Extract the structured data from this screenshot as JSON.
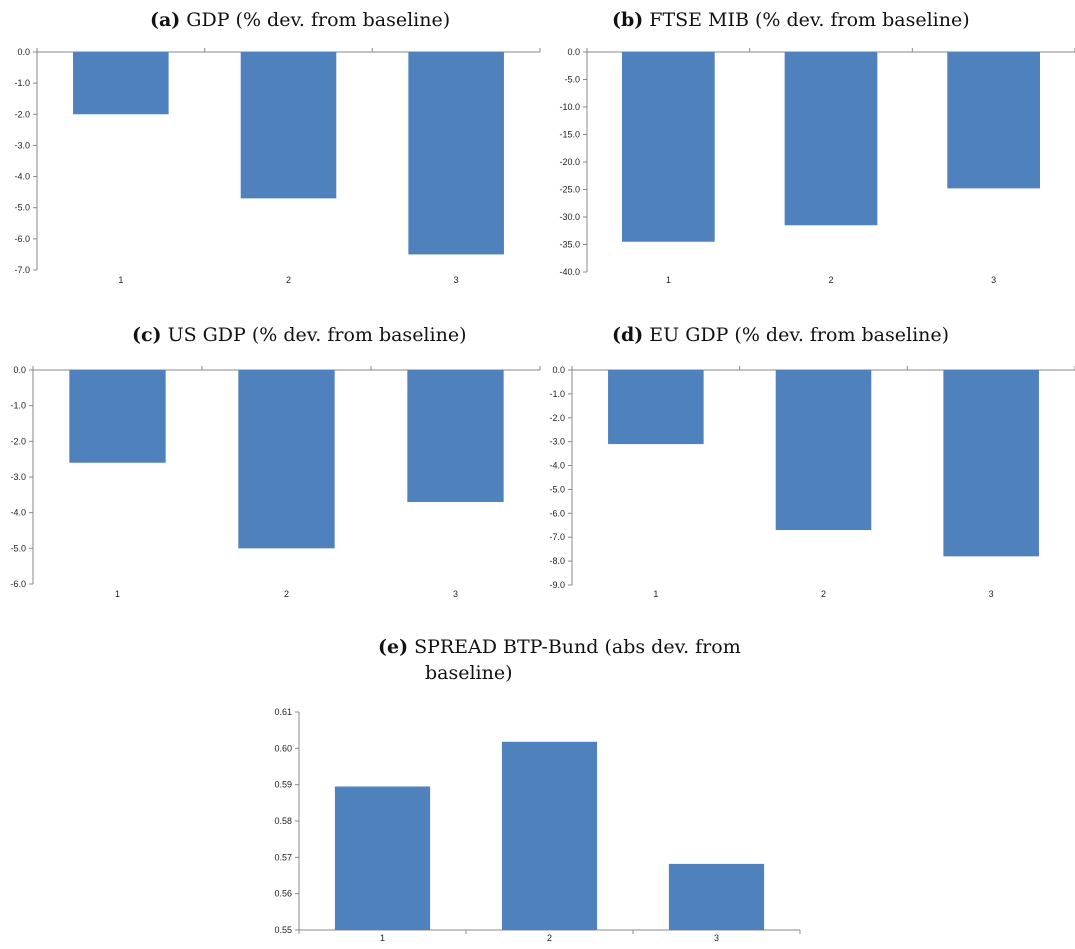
{
  "chart_data": [
    {
      "type": "bar",
      "tag": "(a)",
      "title": "GDP (% dev. from baseline)",
      "categories": [
        "1",
        "2",
        "3"
      ],
      "values": [
        -2.0,
        -4.7,
        -6.5
      ],
      "ylim": [
        -7.0,
        0.0
      ],
      "yticks": [
        "0.0",
        "-1.0",
        "-2.0",
        "-3.0",
        "-4.0",
        "-5.0",
        "-6.0",
        "-7.0"
      ],
      "bar_color": "#4f81bd",
      "grid": false
    },
    {
      "type": "bar",
      "tag": "(b)",
      "title": "FTSE MIB (% dev. from baseline)",
      "categories": [
        "1",
        "2",
        "3"
      ],
      "values": [
        -34.5,
        -31.5,
        -24.8
      ],
      "ylim": [
        -40.0,
        0.0
      ],
      "yticks": [
        "0.0",
        "-5.0",
        "-10.0",
        "-15.0",
        "-20.0",
        "-25.0",
        "-30.0",
        "-35.0",
        "-40.0"
      ],
      "bar_color": "#4f81bd",
      "grid": false
    },
    {
      "type": "bar",
      "tag": "(c)",
      "title": "US GDP (% dev. from baseline)",
      "categories": [
        "1",
        "2",
        "3"
      ],
      "values": [
        -2.6,
        -5.0,
        -3.7
      ],
      "ylim": [
        -6.0,
        0.0
      ],
      "yticks": [
        "0.0",
        "-1.0",
        "-2.0",
        "-3.0",
        "-4.0",
        "-5.0",
        "-6.0"
      ],
      "bar_color": "#4f81bd",
      "grid": false
    },
    {
      "type": "bar",
      "tag": "(d)",
      "title": "EU GDP (% dev. from baseline)",
      "categories": [
        "1",
        "2",
        "3"
      ],
      "values": [
        -3.1,
        -6.7,
        -7.8
      ],
      "ylim": [
        -9.0,
        0.0
      ],
      "yticks": [
        "0.0",
        "-1.0",
        "-2.0",
        "-3.0",
        "-4.0",
        "-5.0",
        "-6.0",
        "-7.0",
        "-8.0",
        "-9.0"
      ],
      "bar_color": "#4f81bd",
      "grid": false
    },
    {
      "type": "bar",
      "tag": "(e)",
      "title": "SPREAD BTP-Bund (abs dev. from baseline)",
      "title_lines": [
        "SPREAD BTP-Bund (abs dev. from",
        "baseline)"
      ],
      "categories": [
        "1",
        "2",
        "3"
      ],
      "values": [
        0.5895,
        0.6018,
        0.5682
      ],
      "ylim": [
        0.55,
        0.61
      ],
      "yticks": [
        "0.61",
        "0.60",
        "0.59",
        "0.58",
        "0.57",
        "0.56",
        "0.55"
      ],
      "bar_color": "#4f81bd",
      "grid": false
    }
  ]
}
